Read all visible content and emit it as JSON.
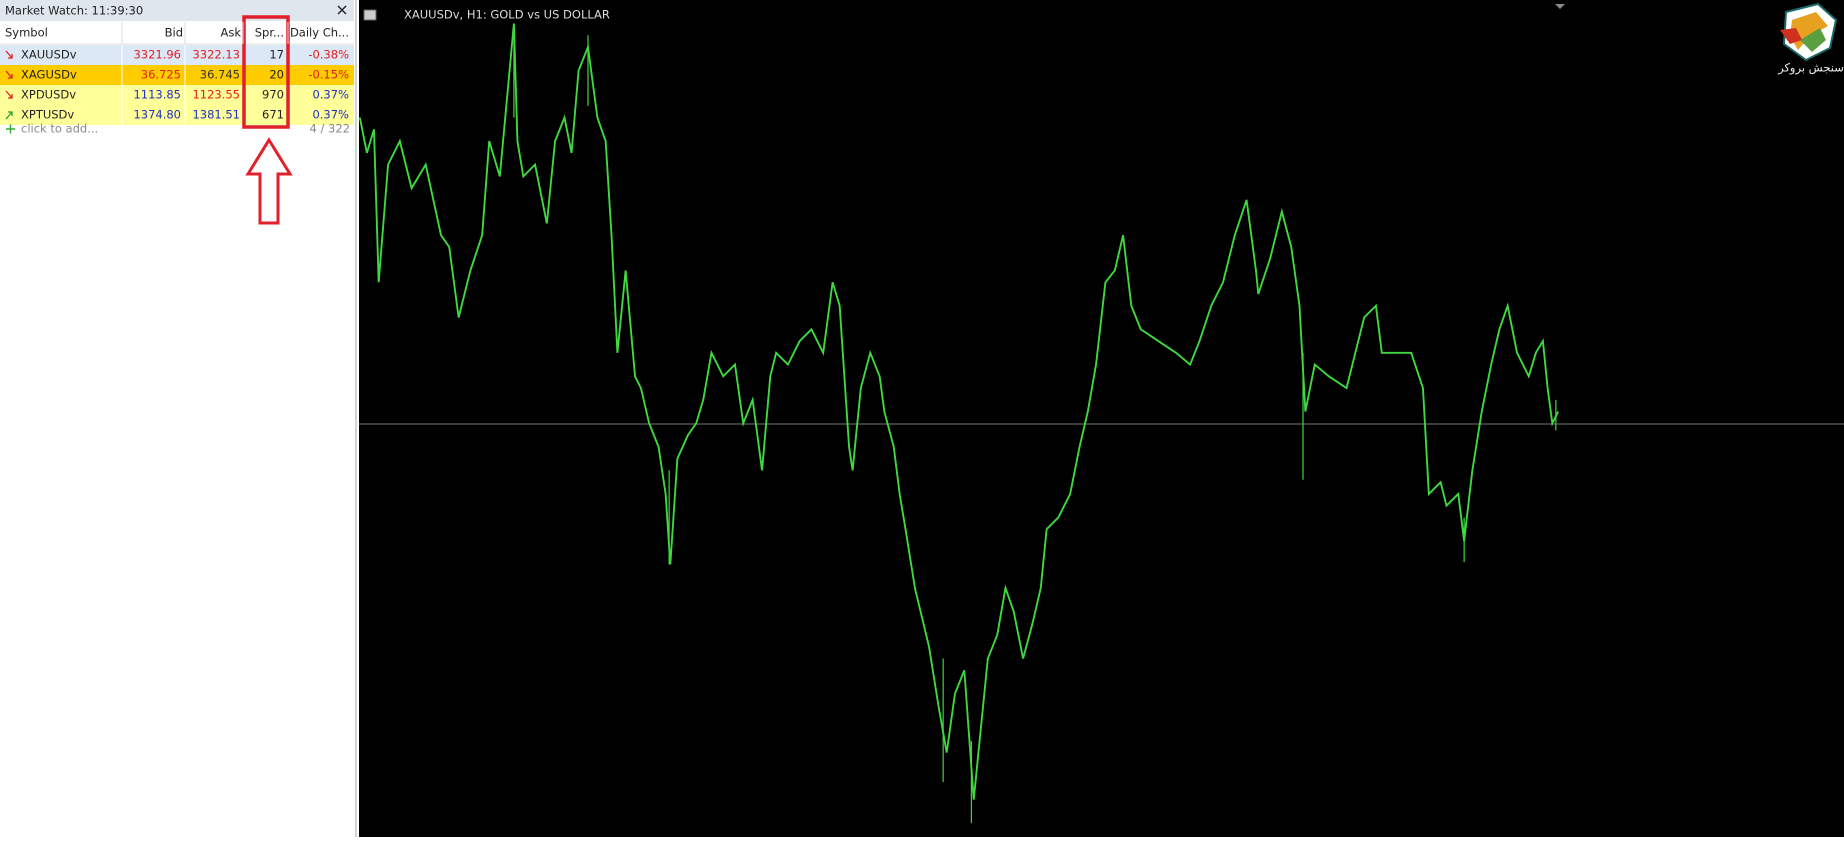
{
  "market_watch": {
    "title": "Market Watch: 11:39:30",
    "columns": [
      "Symbol",
      "Bid",
      "Ask",
      "Spr...",
      "Daily Ch..."
    ],
    "rows": [
      {
        "symbol": "XAUUSDv",
        "bid": "3321.96",
        "ask": "3322.13",
        "spread": "17",
        "change": "-0.38%"
      },
      {
        "symbol": "XAGUSDv",
        "bid": "36.725",
        "ask": "36.745",
        "spread": "20",
        "change": "-0.15%"
      },
      {
        "symbol": "XPDUSDv",
        "bid": "1113.85",
        "ask": "1123.55",
        "spread": "970",
        "change": "0.37%"
      },
      {
        "symbol": "XPTUSDv",
        "bid": "1374.80",
        "ask": "1381.51",
        "spread": "671",
        "change": "0.37%"
      }
    ],
    "add_label": "click to add...",
    "count": "4 / 322"
  },
  "chart": {
    "title": "XAUUSDv, H1:  GOLD vs US DOLLAR",
    "logo_text": "سنجش بروکر"
  }
}
